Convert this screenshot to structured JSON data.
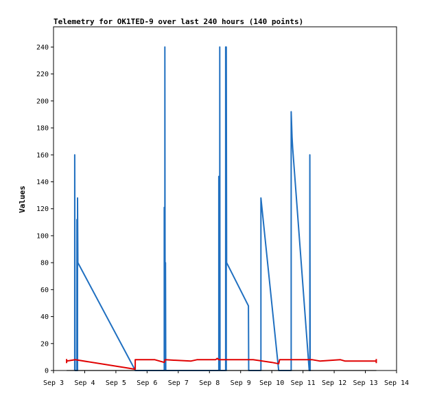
{
  "chart_data": {
    "type": "line",
    "title": "Telemetry for OK1TED-9 over last 240 hours (140 points)",
    "xlabel": "",
    "ylabel": "Values",
    "xlim": [
      3.0,
      14.0
    ],
    "ylim": [
      0,
      255
    ],
    "x_ticks": [
      "Sep 3",
      "Sep 4",
      "Sep 5",
      "Sep 6",
      "Sep 7",
      "Sep 8",
      "Sep 9",
      "Sep 10",
      "Sep 11",
      "Sep 12",
      "Sep 13",
      "Sep 14"
    ],
    "y_ticks": [
      0,
      20,
      40,
      60,
      80,
      100,
      120,
      140,
      160,
      180,
      200,
      220,
      240
    ],
    "grid": false,
    "x_unit": "day of September",
    "colors": {
      "series_blue": "#1f6fc0",
      "series_red": "#e00000",
      "series_black": "#000000"
    },
    "series": [
      {
        "name": "",
        "color": "#1f6fc0",
        "points": [
          [
            3.68,
            0
          ],
          [
            3.68,
            160
          ],
          [
            3.69,
            0
          ],
          [
            3.75,
            0
          ],
          [
            3.75,
            112
          ],
          [
            3.76,
            0
          ],
          [
            3.77,
            0
          ],
          [
            3.77,
            128
          ],
          [
            3.78,
            80
          ],
          [
            5.6,
            1
          ],
          [
            5.62,
            0
          ],
          [
            6.55,
            0
          ],
          [
            6.55,
            121
          ],
          [
            6.56,
            0
          ],
          [
            6.57,
            0
          ],
          [
            6.57,
            240
          ],
          [
            6.58,
            0
          ],
          [
            6.59,
            0
          ],
          [
            6.59,
            80
          ],
          [
            6.6,
            0
          ],
          [
            8.3,
            0
          ],
          [
            8.3,
            144
          ],
          [
            8.31,
            0
          ],
          [
            8.33,
            0
          ],
          [
            8.33,
            240
          ],
          [
            8.34,
            0
          ],
          [
            8.52,
            0
          ],
          [
            8.52,
            240
          ],
          [
            8.53,
            0
          ],
          [
            8.54,
            0
          ],
          [
            8.54,
            240
          ],
          [
            8.55,
            80
          ],
          [
            9.25,
            48
          ],
          [
            9.26,
            0
          ],
          [
            9.65,
            0
          ],
          [
            9.65,
            128
          ],
          [
            10.22,
            0
          ],
          [
            10.62,
            0
          ],
          [
            10.62,
            192
          ],
          [
            10.65,
            173
          ],
          [
            10.67,
            165
          ],
          [
            11.2,
            0
          ],
          [
            11.22,
            0
          ],
          [
            11.22,
            160
          ],
          [
            11.23,
            0
          ],
          [
            11.25,
            0
          ]
        ]
      },
      {
        "name": "",
        "color": "#e00000",
        "points": [
          [
            3.42,
            7
          ],
          [
            3.7,
            8
          ],
          [
            5.6,
            1
          ],
          [
            5.62,
            1
          ],
          [
            5.62,
            8
          ],
          [
            6.25,
            8
          ],
          [
            6.55,
            6
          ],
          [
            6.58,
            8
          ],
          [
            7.4,
            7
          ],
          [
            7.6,
            8
          ],
          [
            8.2,
            8
          ],
          [
            8.25,
            9
          ],
          [
            8.3,
            8
          ],
          [
            9.4,
            8
          ],
          [
            10.0,
            6
          ],
          [
            10.22,
            5
          ],
          [
            10.25,
            8
          ],
          [
            11.3,
            8
          ],
          [
            11.55,
            7
          ],
          [
            12.2,
            8
          ],
          [
            12.35,
            7
          ],
          [
            13.35,
            7
          ]
        ]
      },
      {
        "name": "",
        "color": "#000000",
        "points": [
          [
            3.42,
            0
          ],
          [
            13.35,
            0
          ]
        ]
      }
    ]
  }
}
